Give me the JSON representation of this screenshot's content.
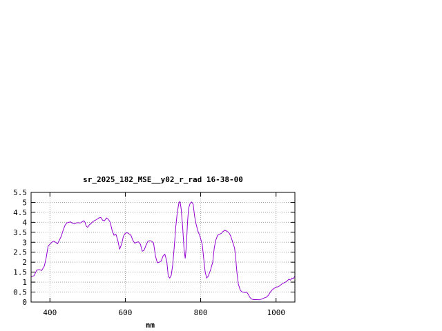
{
  "chart_data": {
    "type": "line",
    "title": "sr_2025_182_MSE__y02_r_rad 16-38-00",
    "xlabel": "nm",
    "ylabel": "",
    "xlim": [
      350,
      1050
    ],
    "ylim": [
      0,
      5.5
    ],
    "grid": true,
    "legend": "none",
    "x_ticks": [
      400,
      600,
      800,
      1000
    ],
    "x_tick_labels": [
      "400",
      "600",
      "800",
      "1000"
    ],
    "y_ticks": [
      0,
      0.5,
      1,
      1.5,
      2,
      2.5,
      3,
      3.5,
      4,
      4.5,
      5,
      5.5
    ],
    "y_tick_labels": [
      "0",
      "0.5",
      "1",
      "1.5",
      "2",
      "2.5",
      "3",
      "3.5",
      "4",
      "4.5",
      "5",
      "5.5"
    ],
    "series": [
      {
        "color": "#9400d3",
        "points": [
          [
            350,
            1.28
          ],
          [
            358,
            1.32
          ],
          [
            365,
            1.6
          ],
          [
            372,
            1.63
          ],
          [
            378,
            1.58
          ],
          [
            385,
            1.8
          ],
          [
            390,
            2.2
          ],
          [
            395,
            2.8
          ],
          [
            400,
            2.9
          ],
          [
            405,
            3.0
          ],
          [
            410,
            3.05
          ],
          [
            415,
            3.0
          ],
          [
            420,
            2.92
          ],
          [
            425,
            3.1
          ],
          [
            430,
            3.3
          ],
          [
            435,
            3.6
          ],
          [
            440,
            3.85
          ],
          [
            445,
            3.97
          ],
          [
            450,
            4.0
          ],
          [
            455,
            4.02
          ],
          [
            460,
            3.95
          ],
          [
            465,
            3.92
          ],
          [
            470,
            3.97
          ],
          [
            475,
            3.98
          ],
          [
            480,
            3.96
          ],
          [
            485,
            4.02
          ],
          [
            490,
            4.08
          ],
          [
            493,
            4.0
          ],
          [
            496,
            3.82
          ],
          [
            500,
            3.75
          ],
          [
            505,
            3.88
          ],
          [
            510,
            3.95
          ],
          [
            515,
            4.05
          ],
          [
            520,
            4.1
          ],
          [
            525,
            4.15
          ],
          [
            530,
            4.22
          ],
          [
            535,
            4.24
          ],
          [
            540,
            4.1
          ],
          [
            545,
            4.08
          ],
          [
            550,
            4.22
          ],
          [
            555,
            4.15
          ],
          [
            560,
            4.0
          ],
          [
            565,
            3.6
          ],
          [
            570,
            3.35
          ],
          [
            575,
            3.4
          ],
          [
            580,
            3.1
          ],
          [
            585,
            2.65
          ],
          [
            590,
            2.9
          ],
          [
            595,
            3.3
          ],
          [
            600,
            3.45
          ],
          [
            605,
            3.48
          ],
          [
            610,
            3.42
          ],
          [
            615,
            3.35
          ],
          [
            620,
            3.1
          ],
          [
            625,
            2.95
          ],
          [
            630,
            3.0
          ],
          [
            635,
            3.02
          ],
          [
            640,
            2.9
          ],
          [
            645,
            2.55
          ],
          [
            650,
            2.6
          ],
          [
            655,
            2.85
          ],
          [
            660,
            3.05
          ],
          [
            665,
            3.08
          ],
          [
            670,
            3.05
          ],
          [
            675,
            2.95
          ],
          [
            680,
            2.3
          ],
          [
            685,
            1.97
          ],
          [
            690,
            2.0
          ],
          [
            695,
            2.05
          ],
          [
            700,
            2.3
          ],
          [
            705,
            2.4
          ],
          [
            710,
            2.05
          ],
          [
            714,
            1.3
          ],
          [
            718,
            1.2
          ],
          [
            722,
            1.35
          ],
          [
            726,
            1.9
          ],
          [
            730,
            2.8
          ],
          [
            734,
            3.8
          ],
          [
            738,
            4.5
          ],
          [
            742,
            4.95
          ],
          [
            745,
            5.05
          ],
          [
            748,
            4.7
          ],
          [
            752,
            3.8
          ],
          [
            756,
            2.6
          ],
          [
            759,
            2.2
          ],
          [
            762,
            2.8
          ],
          [
            765,
            4.0
          ],
          [
            768,
            4.7
          ],
          [
            772,
            4.95
          ],
          [
            776,
            5.02
          ],
          [
            780,
            4.9
          ],
          [
            784,
            4.3
          ],
          [
            788,
            3.9
          ],
          [
            792,
            3.6
          ],
          [
            798,
            3.3
          ],
          [
            804,
            2.9
          ],
          [
            808,
            2.2
          ],
          [
            812,
            1.5
          ],
          [
            816,
            1.2
          ],
          [
            820,
            1.3
          ],
          [
            826,
            1.6
          ],
          [
            832,
            2.0
          ],
          [
            836,
            2.7
          ],
          [
            840,
            3.1
          ],
          [
            845,
            3.35
          ],
          [
            850,
            3.4
          ],
          [
            855,
            3.45
          ],
          [
            860,
            3.55
          ],
          [
            864,
            3.6
          ],
          [
            868,
            3.57
          ],
          [
            872,
            3.52
          ],
          [
            876,
            3.45
          ],
          [
            880,
            3.3
          ],
          [
            885,
            3.0
          ],
          [
            890,
            2.7
          ],
          [
            893,
            2.2
          ],
          [
            896,
            1.5
          ],
          [
            900,
            0.9
          ],
          [
            905,
            0.6
          ],
          [
            910,
            0.5
          ],
          [
            918,
            0.48
          ],
          [
            922,
            0.5
          ],
          [
            926,
            0.4
          ],
          [
            930,
            0.25
          ],
          [
            935,
            0.15
          ],
          [
            940,
            0.12
          ],
          [
            948,
            0.12
          ],
          [
            955,
            0.11
          ],
          [
            962,
            0.15
          ],
          [
            968,
            0.2
          ],
          [
            975,
            0.25
          ],
          [
            980,
            0.35
          ],
          [
            985,
            0.5
          ],
          [
            990,
            0.62
          ],
          [
            996,
            0.7
          ],
          [
            1000,
            0.75
          ],
          [
            1005,
            0.76
          ],
          [
            1010,
            0.82
          ],
          [
            1015,
            0.9
          ],
          [
            1020,
            0.95
          ],
          [
            1025,
            1.0
          ],
          [
            1030,
            1.07
          ],
          [
            1034,
            1.15
          ],
          [
            1038,
            1.1
          ],
          [
            1042,
            1.2
          ],
          [
            1046,
            1.18
          ],
          [
            1050,
            1.3
          ]
        ]
      }
    ]
  }
}
